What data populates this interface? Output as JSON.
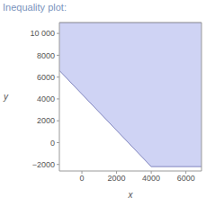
{
  "chart_data": {
    "type": "area",
    "title": "Inequality plot:",
    "x_label": "x",
    "y_label": "y",
    "region": {
      "x": [
        -1300,
        4000,
        6900
      ],
      "lower": [
        6600,
        -2200,
        -2200
      ],
      "upper": [
        11000,
        11000,
        11000
      ]
    },
    "color": "#cfd3f4",
    "edge_color": "#6a6fb0",
    "xlim": [
      -1300,
      6900
    ],
    "ylim": [
      -2600,
      11000
    ],
    "xticks": [
      0,
      2000,
      4000,
      6000
    ],
    "yticks": [
      {
        "value": -2000,
        "label": "−2000"
      },
      0,
      2000,
      4000,
      6000,
      8000,
      {
        "value": 10000,
        "label": "10 000"
      }
    ],
    "grid": false
  }
}
